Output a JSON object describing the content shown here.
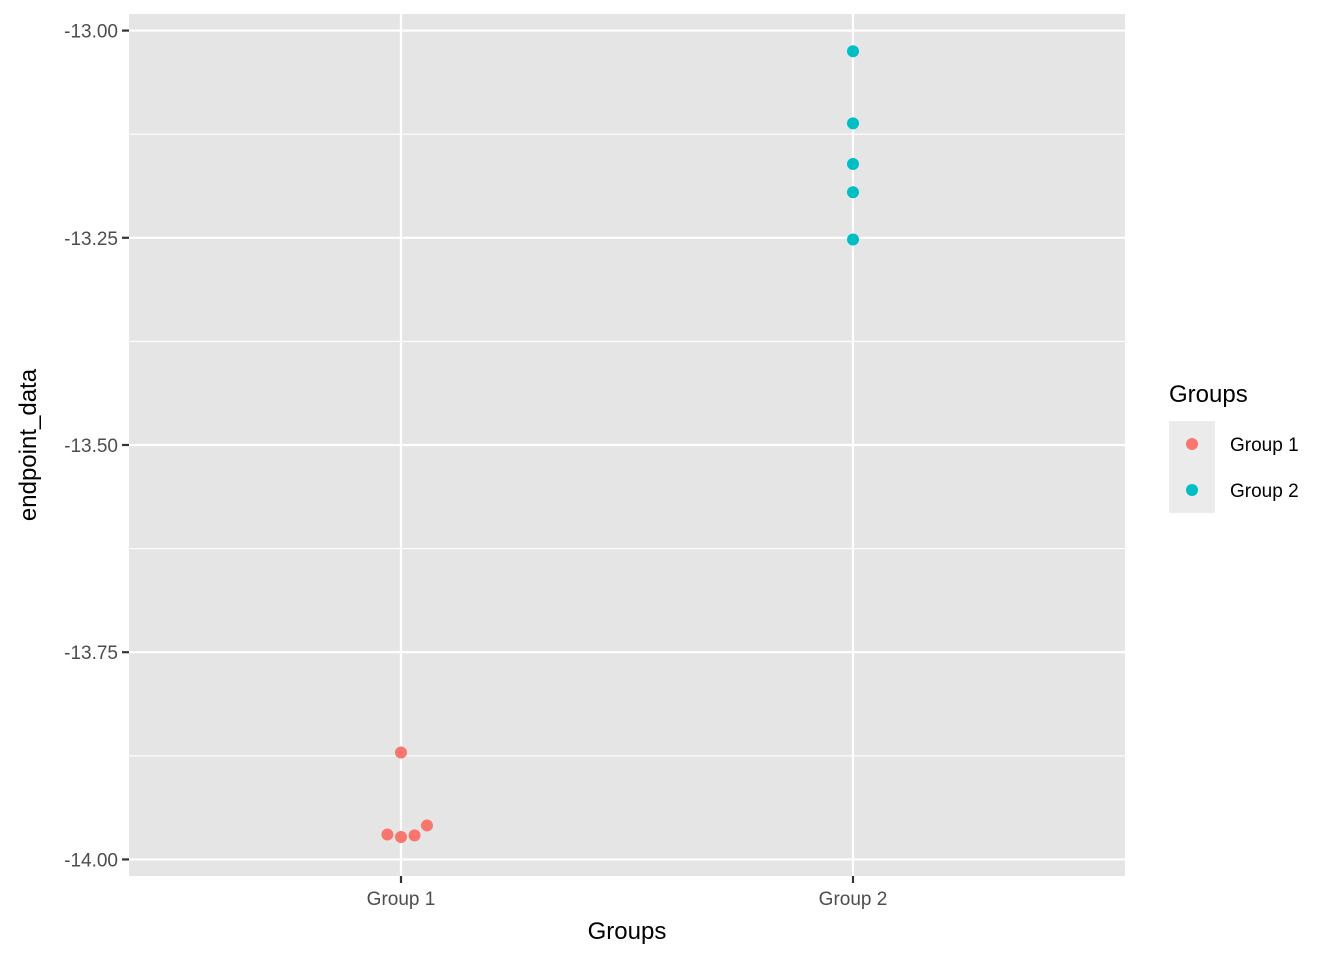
{
  "chart_data": {
    "type": "scatter",
    "title": "",
    "xlabel": "Groups",
    "ylabel": "endpoint_data",
    "categories": [
      "Group 1",
      "Group 2"
    ],
    "ylim": [
      -14.02,
      -12.98
    ],
    "yticks": [
      -14.0,
      -13.75,
      -13.5,
      -13.25,
      -13.0
    ],
    "ytick_labels": [
      "-14.00",
      "-13.75",
      "-13.50",
      "-13.25",
      "-13.00"
    ],
    "grid": true,
    "legend": {
      "title": "Groups",
      "placement": "right",
      "entries": [
        "Group 1",
        "Group 2"
      ]
    },
    "series": [
      {
        "name": "Group 1",
        "color": "#F8766D",
        "points": [
          {
            "x": "Group 1",
            "offset": 0.0,
            "y": -13.871
          },
          {
            "x": "Group 1",
            "offset": -0.06,
            "y": -13.97
          },
          {
            "x": "Group 1",
            "offset": 0.0,
            "y": -13.973
          },
          {
            "x": "Group 1",
            "offset": 0.06,
            "y": -13.971
          },
          {
            "x": "Group 1",
            "offset": 0.115,
            "y": -13.959
          }
        ]
      },
      {
        "name": "Group 2",
        "color": "#00BFC4",
        "points": [
          {
            "x": "Group 2",
            "offset": 0.0,
            "y": -13.025
          },
          {
            "x": "Group 2",
            "offset": 0.0,
            "y": -13.112
          },
          {
            "x": "Group 2",
            "offset": 0.0,
            "y": -13.161
          },
          {
            "x": "Group 2",
            "offset": 0.0,
            "y": -13.195
          },
          {
            "x": "Group 2",
            "offset": 0.0,
            "y": -13.252
          }
        ]
      }
    ]
  },
  "colors": {
    "panel_background": "#E5E5E5",
    "grid": "#FFFFFF",
    "legend_key_background": "#EBEBEB"
  }
}
